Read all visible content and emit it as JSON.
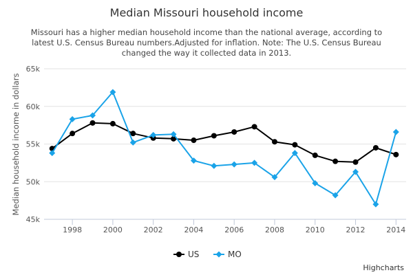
{
  "chart_data": {
    "type": "line",
    "title": "Median Missouri household income",
    "subtitle": [
      "Missouri has a higher median household income than the national average, according to",
      "latest U.S. Census Bureau numbers.Adjusted for inflation. Note: The U.S. Census Bureau",
      "changed the way it collected data in 2013."
    ],
    "xlabel": "",
    "ylabel": "Median household income in dollars",
    "x": [
      1997,
      1998,
      1999,
      2000,
      2001,
      2002,
      2003,
      2004,
      2005,
      2006,
      2007,
      2008,
      2009,
      2010,
      2011,
      2012,
      2013,
      2014
    ],
    "xticks": [
      1998,
      2000,
      2002,
      2004,
      2006,
      2008,
      2010,
      2012,
      2014
    ],
    "ylim": [
      45000,
      65000
    ],
    "yticks": [
      {
        "value": 45000,
        "label": "45k"
      },
      {
        "value": 50000,
        "label": "50k"
      },
      {
        "value": 55000,
        "label": "55k"
      },
      {
        "value": 60000,
        "label": "60k"
      },
      {
        "value": 65000,
        "label": "65k"
      }
    ],
    "grid": true,
    "legend_position": "bottom-center",
    "series": [
      {
        "name": "US",
        "color": "#000000",
        "marker": "circle",
        "values": [
          54400,
          56400,
          57800,
          57700,
          56400,
          55800,
          55700,
          55500,
          56100,
          56600,
          57300,
          55300,
          54900,
          53500,
          52700,
          52600,
          54500,
          53600
        ]
      },
      {
        "name": "MO",
        "color": "#1aa3e8",
        "marker": "diamond",
        "values": [
          53800,
          58300,
          58800,
          61900,
          55200,
          56200,
          56300,
          52800,
          52100,
          52300,
          52500,
          50600,
          53800,
          49800,
          48200,
          51300,
          47000,
          56600
        ]
      }
    ],
    "credits": "Highcharts"
  }
}
